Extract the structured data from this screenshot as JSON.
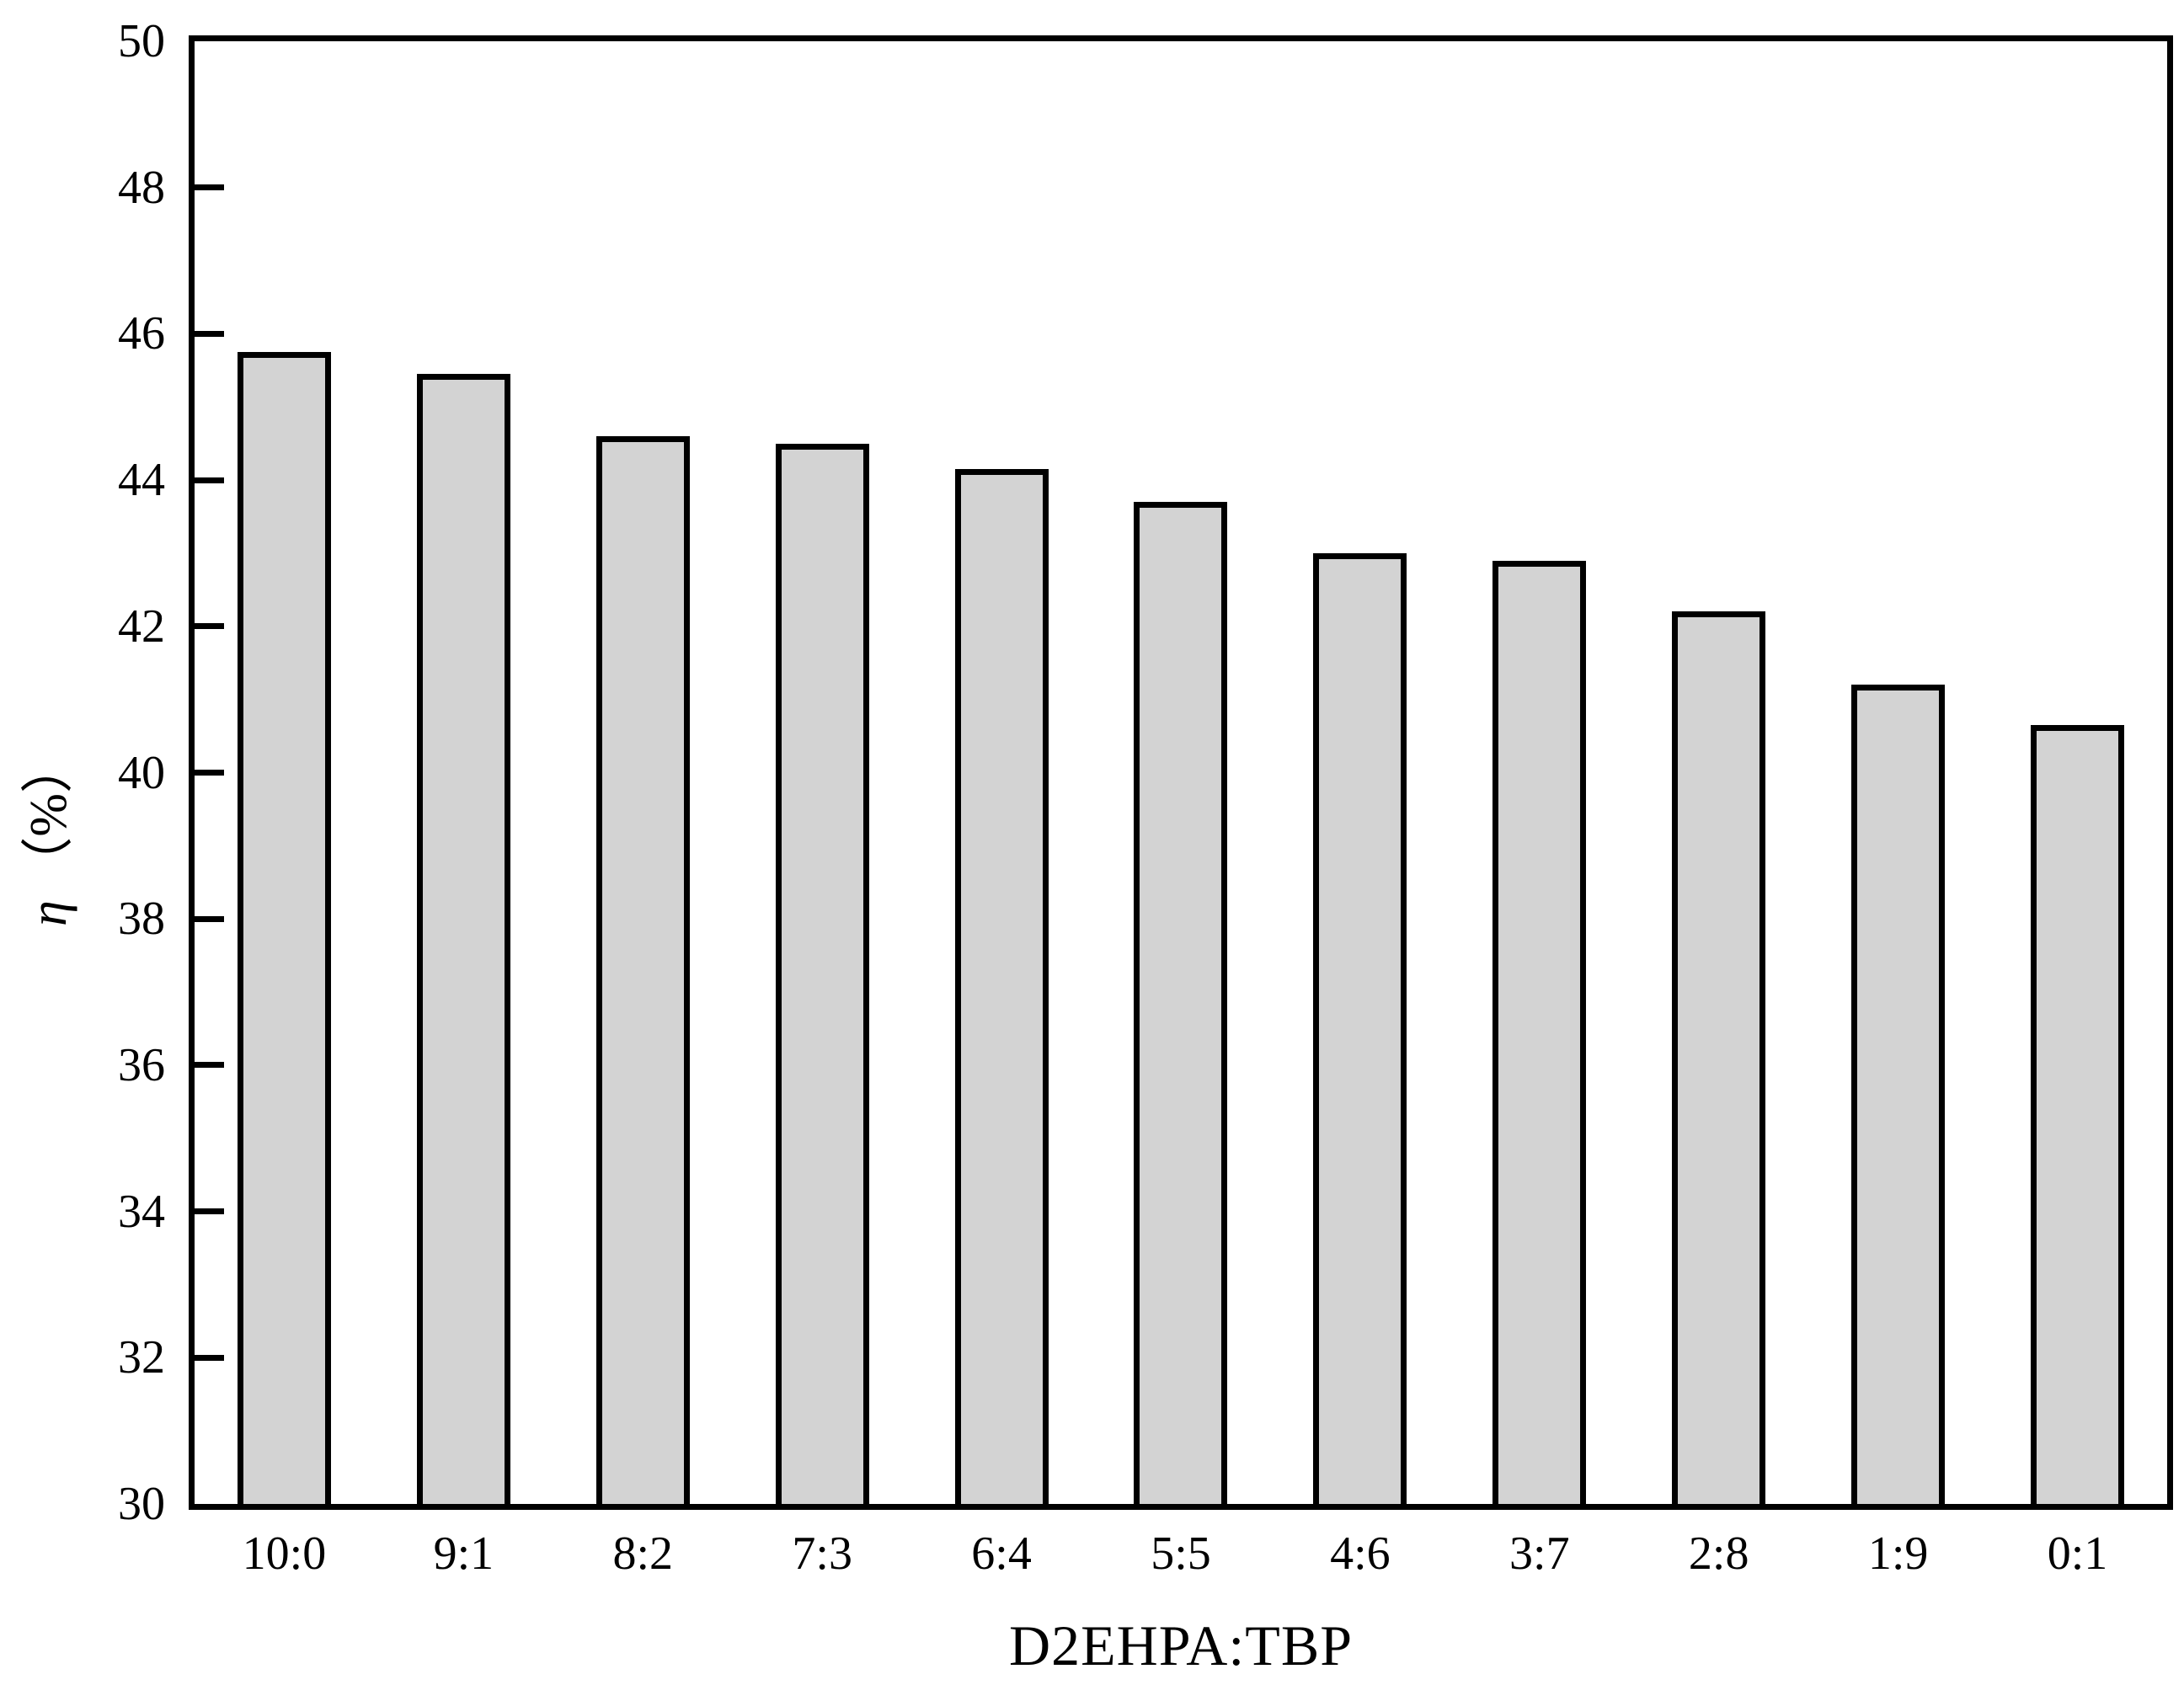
{
  "figure": {
    "background": "#ffffff"
  },
  "chart_data": {
    "type": "bar",
    "title": "",
    "xlabel": "D2EHPA:TBP",
    "ylabel_symbol": "η",
    "ylabel_unit": "（%）",
    "categories": [
      "10:0",
      "9:1",
      "8:2",
      "7:3",
      "6:4",
      "5:5",
      "4:6",
      "3:7",
      "2:8",
      "1:9",
      "0:1"
    ],
    "values": [
      45.75,
      45.45,
      44.6,
      44.5,
      44.15,
      43.7,
      43.0,
      42.9,
      42.2,
      41.2,
      40.65
    ],
    "ylim": [
      30,
      50
    ],
    "yticks": [
      30,
      32,
      34,
      36,
      38,
      40,
      42,
      44,
      46,
      48,
      50
    ],
    "grid": false,
    "legend": null,
    "bar_color": "#d3d3d3",
    "bar_edge_color": "#000000",
    "axis_color": "#000000",
    "background_color": "#ffffff"
  }
}
